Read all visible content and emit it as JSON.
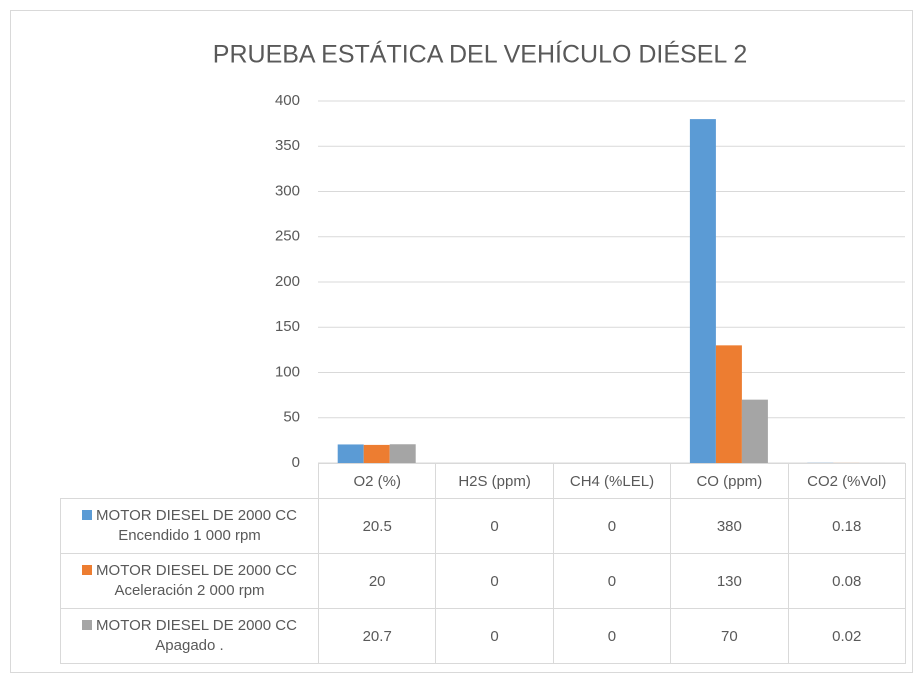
{
  "chart_data": {
    "type": "bar",
    "title": "PRUEBA ESTÁTICA DEL VEHÍCULO DIÉSEL 2",
    "categories": [
      "O2 (%)",
      "H2S (ppm)",
      "CH4 (%LEL)",
      "CO (ppm)",
      "CO2 (%Vol)"
    ],
    "series": [
      {
        "name": "MOTOR DIESEL DE 2000 CC Encendido 1 000 rpm",
        "color": "#5b9bd5",
        "values": [
          20.5,
          0,
          0,
          380,
          0.18
        ]
      },
      {
        "name": "MOTOR DIESEL DE 2000 CC Aceleración 2 000 rpm",
        "color": "#ed7d31",
        "values": [
          20,
          0,
          0,
          130,
          0.08
        ]
      },
      {
        "name": "MOTOR DIESEL DE 2000 CC Apagado .",
        "color": "#a5a5a5",
        "values": [
          20.7,
          0,
          0,
          70,
          0.02
        ]
      }
    ],
    "ylim": [
      0,
      400
    ],
    "yticks": [
      0,
      50,
      100,
      150,
      200,
      250,
      300,
      350,
      400
    ],
    "grid": true,
    "legend": "table"
  }
}
